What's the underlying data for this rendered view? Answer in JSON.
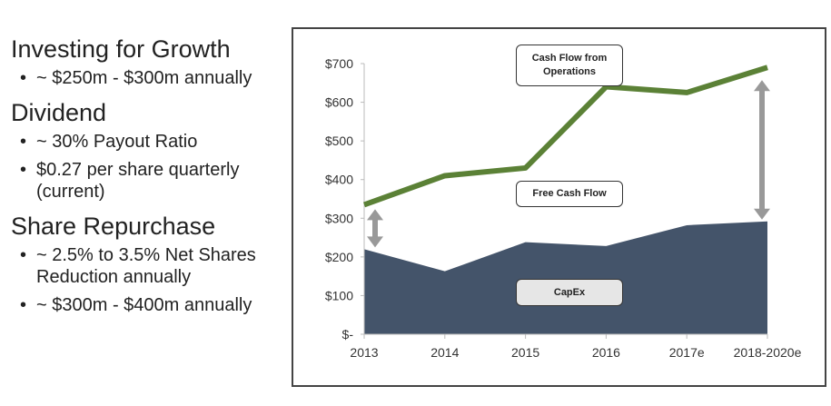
{
  "left": {
    "sections": [
      {
        "title": "Investing for Growth",
        "bullets": [
          "~ $250m - $300m annually"
        ]
      },
      {
        "title": "Dividend",
        "bullets": [
          "~ 30% Payout Ratio",
          "$0.27 per share quarterly (current)"
        ]
      },
      {
        "title": "Share Repurchase",
        "bullets": [
          "~ 2.5% to 3.5% Net Shares Reduction annually",
          "~ $300m - $400m annually"
        ]
      }
    ]
  },
  "chart_data": {
    "type": "line",
    "categories": [
      "2013",
      "2014",
      "2015",
      "2016",
      "2017e",
      "2018-2020e"
    ],
    "series": [
      {
        "name": "Cash Flow from Operations",
        "type": "line",
        "color": "#5b8136",
        "values": [
          335,
          410,
          430,
          640,
          625,
          690
        ]
      },
      {
        "name": "CapEx",
        "type": "area",
        "color": "#44546a",
        "values": [
          220,
          163,
          238,
          228,
          282,
          292
        ]
      }
    ],
    "annotations": [
      "Cash Flow from Operations",
      "Free Cash Flow",
      "CapEx"
    ],
    "ylim": [
      0,
      700
    ],
    "yticks": [
      0,
      100,
      200,
      300,
      400,
      500,
      600,
      700
    ],
    "ytick_labels": [
      "$-",
      "$100",
      "$200",
      "$300",
      "$400",
      "$500",
      "$600",
      "$700"
    ],
    "grid": false
  }
}
